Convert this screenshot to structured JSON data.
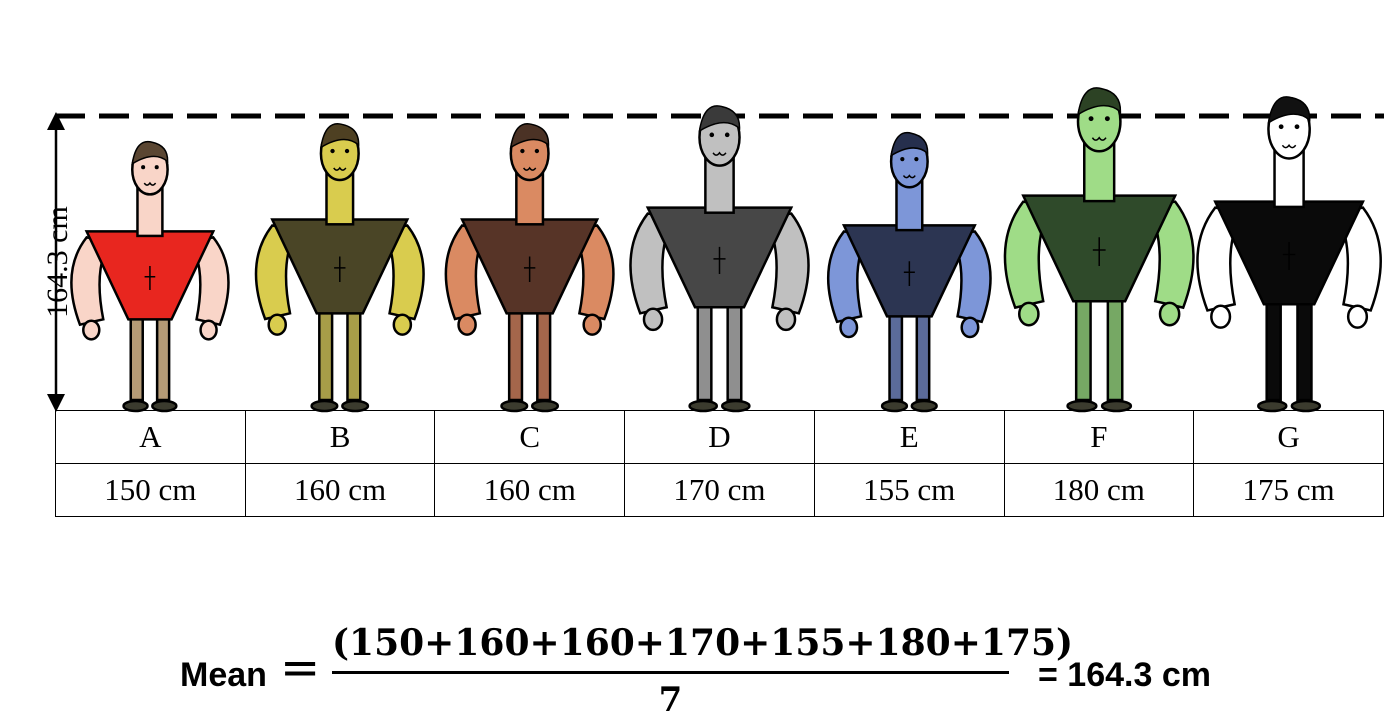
{
  "mean_label": "164.3 cm",
  "characters": [
    {
      "letter": "A",
      "height_label": "150 cm",
      "height_cm": 150,
      "skin": "#f9d5c8",
      "shirt": "#e8261f",
      "pants": "#b59b76",
      "hair": "#5a4632"
    },
    {
      "letter": "B",
      "height_label": "160 cm",
      "height_cm": 160,
      "skin": "#d9cc4e",
      "shirt": "#4a4526",
      "pants": "#a79d48",
      "hair": "#4e4022"
    },
    {
      "letter": "C",
      "height_label": "160 cm",
      "height_cm": 160,
      "skin": "#da8a62",
      "shirt": "#573427",
      "pants": "#a4664b",
      "hair": "#4b3225"
    },
    {
      "letter": "D",
      "height_label": "170 cm",
      "height_cm": 170,
      "skin": "#c0c0c0",
      "shirt": "#474747",
      "pants": "#8f8f8f",
      "hair": "#3a3a3a"
    },
    {
      "letter": "E",
      "height_label": "155 cm",
      "height_cm": 155,
      "skin": "#7d96d8",
      "shirt": "#2c3552",
      "pants": "#5b6b9a",
      "hair": "#262f4d"
    },
    {
      "letter": "F",
      "height_label": "180 cm",
      "height_cm": 180,
      "skin": "#9fdc87",
      "shirt": "#2f4a2a",
      "pants": "#76a864",
      "hair": "#2c4224"
    },
    {
      "letter": "G",
      "height_label": "175 cm",
      "height_cm": 175,
      "skin": "#ffffff",
      "shirt": "#0a0a0a",
      "pants": "#0a0a0a",
      "hair": "#111111"
    }
  ],
  "formula": {
    "mean_word": "Mean",
    "equals": "=",
    "numerator": "(150+160+160+170+155+180+175)",
    "denominator": "7",
    "result": "= 164.3 cm"
  },
  "mean_value_cm": 164.3
}
